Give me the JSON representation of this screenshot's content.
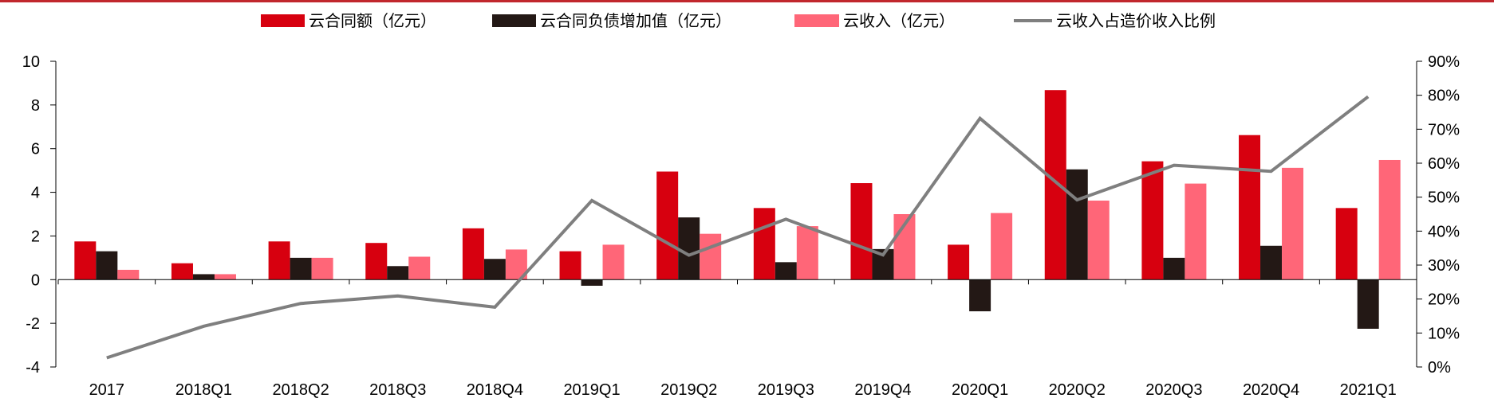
{
  "colors": {
    "top_rule": "#c1272d",
    "contract_amount": "#d7000f",
    "contract_liability_increase": "#231815",
    "cloud_revenue": "#ff6678",
    "cloud_ratio": "#7f7f7f",
    "axis": "#000000"
  },
  "legend": [
    {
      "label": "云合同额（亿元）",
      "kind": "bar",
      "color_key": "contract_amount"
    },
    {
      "label": "云合同负债增加值（亿元）",
      "kind": "bar",
      "color_key": "contract_liability_increase"
    },
    {
      "label": "云收入（亿元）",
      "kind": "bar",
      "color_key": "cloud_revenue"
    },
    {
      "label": "云收入占造价收入比例",
      "kind": "line",
      "color_key": "cloud_ratio"
    }
  ],
  "chart_data": {
    "type": "bar",
    "legend_position": "top",
    "grid": false,
    "categories": [
      "2017",
      "2018Q1",
      "2018Q2",
      "2018Q3",
      "2018Q4",
      "2019Q1",
      "2019Q2",
      "2019Q3",
      "2019Q4",
      "2020Q1",
      "2020Q2",
      "2020Q3",
      "2020Q4",
      "2021Q1"
    ],
    "y_left": {
      "min": -4,
      "max": 10,
      "step": 2,
      "ticks": [
        "-4",
        "-2",
        "0",
        "2",
        "4",
        "6",
        "8",
        "10"
      ]
    },
    "y_right": {
      "min": 0,
      "max": 90,
      "step": 10,
      "ticks": [
        "0%",
        "10%",
        "20%",
        "30%",
        "40%",
        "50%",
        "60%",
        "70%",
        "80%",
        "90%"
      ]
    },
    "series": [
      {
        "name": "云合同额（亿元）",
        "type": "bar",
        "axis": "left",
        "color_key": "contract_amount",
        "values": [
          1.75,
          0.75,
          1.75,
          1.68,
          2.35,
          1.3,
          4.95,
          3.28,
          4.42,
          1.6,
          8.68,
          5.42,
          6.62,
          3.28
        ]
      },
      {
        "name": "云合同负债增加值（亿元）",
        "type": "bar",
        "axis": "left",
        "color_key": "contract_liability_increase",
        "values": [
          1.3,
          0.25,
          1.0,
          0.62,
          0.95,
          -0.28,
          2.85,
          0.8,
          1.4,
          -1.45,
          5.05,
          1.0,
          1.55,
          -2.25
        ]
      },
      {
        "name": "云收入（亿元）",
        "type": "bar",
        "axis": "left",
        "color_key": "cloud_revenue",
        "values": [
          0.45,
          0.25,
          1.0,
          1.05,
          1.38,
          1.6,
          2.1,
          2.45,
          3.0,
          3.05,
          3.62,
          4.4,
          5.12,
          5.48
        ]
      },
      {
        "name": "云收入占造价收入比例",
        "type": "line",
        "axis": "right",
        "color_key": "cloud_ratio",
        "values": [
          2.7,
          12.0,
          18.7,
          20.9,
          17.6,
          49.0,
          32.9,
          43.5,
          33.0,
          73.2,
          49.2,
          59.4,
          57.6,
          79.6
        ]
      }
    ]
  }
}
